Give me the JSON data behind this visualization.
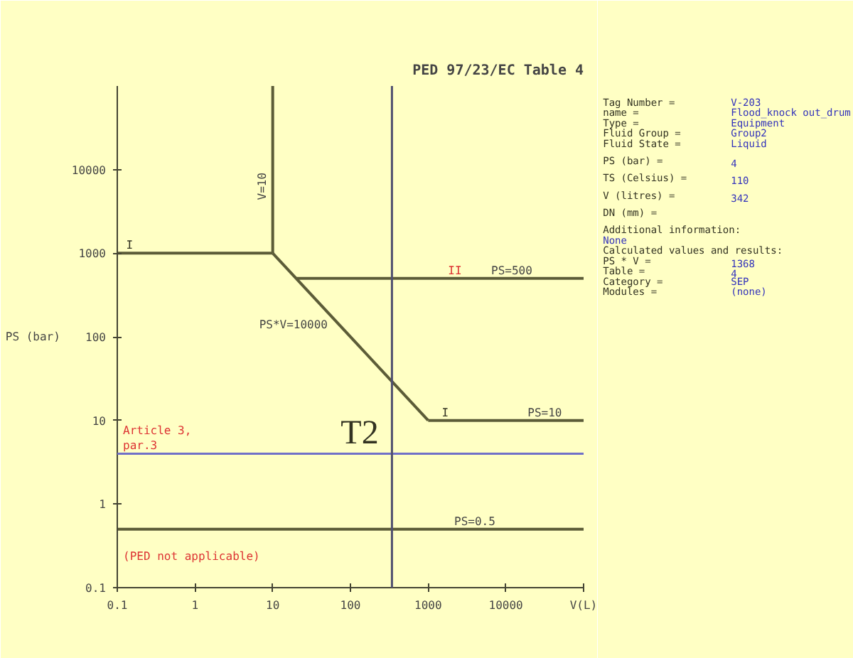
{
  "chart_data": [
    {
      "type": "line",
      "title": "PED 97/23/EC Table 4",
      "ylabel": "PS (bar)",
      "log": "xy",
      "grid": false,
      "marker": "none",
      "line_style": "solid",
      "xlim": [
        0.1,
        100000
      ],
      "ylim": [
        0.1,
        100000
      ],
      "xticks": [
        0.1,
        1,
        10,
        100,
        1000,
        10000,
        {
          "value": 100000,
          "label": "V(L)"
        }
      ],
      "yticks": [
        0.1,
        1,
        10,
        100,
        1000,
        10000
      ],
      "series": [
        {
          "color": "#5c5c38",
          "x": [
            0.1,
            10
          ],
          "values": [
            1000,
            1000
          ]
        },
        {
          "name": "V=10",
          "color": "#5c5c38",
          "x": [
            10,
            10
          ],
          "values": [
            1000,
            100000
          ]
        },
        {
          "name": "PS*V=10000",
          "color": "#5c5c38",
          "x": [
            10,
            1000
          ],
          "values": [
            1000,
            10
          ]
        },
        {
          "name": "PS=500",
          "color": "#5c5c38",
          "x": [
            20,
            100000
          ],
          "values": [
            500,
            500
          ]
        },
        {
          "name": "PS=10",
          "color": "#5c5c38",
          "x": [
            1000,
            100000
          ],
          "values": [
            10,
            10
          ]
        },
        {
          "name": "PS=0.5",
          "color": "#5c5c38",
          "x": [
            0.1,
            100000
          ],
          "values": [
            0.5,
            0.5
          ]
        }
      ],
      "ref_lines": [
        {
          "axis": "y",
          "value": 4,
          "color": "#7070c8"
        },
        {
          "axis": "x",
          "value": 342,
          "color": "#505070"
        }
      ],
      "annotations": [
        {
          "text": "I",
          "x": 0.13,
          "y": 1000
        },
        {
          "text": "II",
          "x": 1800,
          "y": 500
        },
        {
          "text": "I",
          "x": 1500,
          "y": 10
        },
        {
          "text": "T2",
          "x": 75,
          "y": 4
        },
        "Article 3,\npar.3",
        "(PED not applicable)"
      ]
    },
    {
      "type": "other",
      "annotations": [
        "Tag Number = V-203",
        "name = Flood_knock out_drum",
        "Type = Equipment",
        "Fluid Group = Group2",
        "Fluid State = Liquid",
        "PS (bar) = 4",
        "TS (Celsius) = 110",
        "V (litres) = 342",
        "DN (mm) =",
        "Additional information:",
        "None",
        "Calculated values and results:",
        "PS * V = 1368",
        "Table = 4",
        "Category = SEP",
        "Modules = (none)"
      ]
    }
  ]
}
